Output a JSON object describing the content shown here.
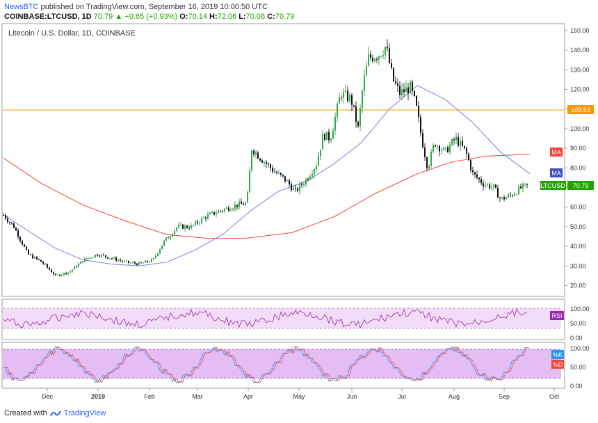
{
  "header": {
    "brand": "NewsBTC",
    "published_text": " published on TradingView.com, September 16, 2019 10:00:50 UTC",
    "symbol": "COINBASE:LTCUSD, 1D",
    "last": "70.79",
    "change": "+0.65 (+0.93%)",
    "o_label": "O:",
    "o_val": "70.14",
    "h_label": "H:",
    "h_val": "72.06",
    "l_label": "L:",
    "l_val": "70.08",
    "c_label": "C:",
    "c_val": "70.79"
  },
  "pane_title": "Litecoin / U.S. Dollar, 1D, COINBASE",
  "price_axis": {
    "ticks": [
      "150.00",
      "140.00",
      "130.00",
      "120.00",
      "110.00",
      "100.00",
      "90.00",
      "80.00",
      "70.00",
      "60.00",
      "50.00",
      "40.00",
      "30.00",
      "20.00"
    ],
    "hline_label": "109.53",
    "ma_red_label": "MA",
    "ma_blue_label": "MA",
    "last_label": "LTCUSD",
    "last_value": "70.79"
  },
  "rsi_axis": {
    "ticks": [
      "100.00",
      "50.00",
      "0.00"
    ],
    "label": "RSI"
  },
  "stoch_axis": {
    "ticks": [
      "100.00",
      "50.00",
      "0.00"
    ],
    "k_label": "%K",
    "d_label": "%D"
  },
  "time_axis": {
    "ticks": [
      "Dec",
      "2019",
      "Feb",
      "Mar",
      "Apr",
      "May",
      "Jun",
      "Jul",
      "Aug",
      "Sep",
      "Oct"
    ]
  },
  "colors": {
    "up": "#26a69a",
    "up_fill": "#21a300",
    "down": "#000000",
    "hline": "#ff9800",
    "ma_red": "#f44336",
    "ma_blue": "#7b7fd6",
    "rsi": "#9c27b0",
    "rsi_band": "#f2dcf7",
    "stoch_band": "#e4bdf5"
  },
  "footer": {
    "created_with": "Created with",
    "brand": "TradingView"
  },
  "chart_data": {
    "type": "line",
    "title": "Litecoin / U.S. Dollar, 1D, COINBASE",
    "x": [
      "Dec",
      "2019",
      "Feb",
      "Mar",
      "Apr",
      "May",
      "Jun",
      "Jul",
      "Aug",
      "Sep",
      "Oct"
    ],
    "series": [
      {
        "name": "LTCUSD",
        "values": [
          30,
          31,
          34,
          45,
          60,
          75,
          115,
          125,
          95,
          65,
          70.79
        ]
      }
    ],
    "ylim": [
      15,
      152
    ],
    "hline": 109.53
  }
}
